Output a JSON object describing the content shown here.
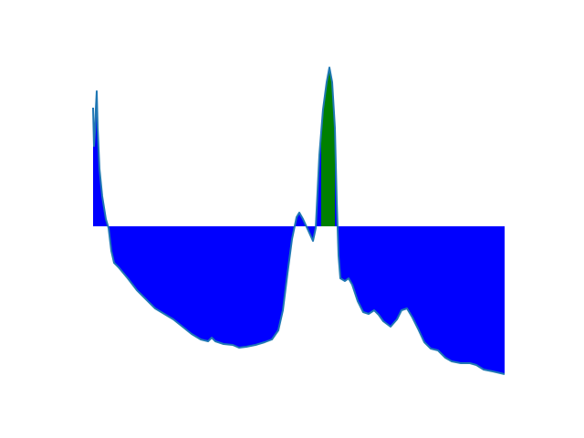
{
  "chart_data": {
    "type": "area",
    "x": [
      0,
      1,
      2,
      3,
      4,
      5,
      7,
      10,
      14,
      17,
      20,
      23,
      28,
      38,
      48,
      58,
      68,
      78,
      88,
      98,
      108,
      118,
      126,
      130,
      134,
      143,
      153,
      160,
      168,
      178,
      188,
      196,
      203,
      208,
      213,
      218,
      223,
      226,
      230,
      236,
      241,
      244,
      248,
      252,
      256,
      259,
      262,
      265,
      267,
      269,
      271,
      276,
      280,
      284,
      290,
      296,
      302,
      308,
      313,
      318,
      326,
      333,
      338,
      344,
      350,
      356,
      363,
      370,
      378,
      386,
      393,
      403,
      413,
      420,
      428,
      438,
      451
    ],
    "values": [
      130,
      88,
      103,
      128,
      148,
      108,
      63,
      33,
      8,
      -2,
      -27,
      -40,
      -45,
      -57,
      -70,
      -80,
      -90,
      -96,
      -102,
      -110,
      -118,
      -124,
      -126,
      -122,
      -126,
      -129,
      -130,
      -133,
      -132,
      -130,
      -127,
      -124,
      -114,
      -92,
      -52,
      -14,
      10,
      15,
      8,
      -5,
      -16,
      -2,
      78,
      128,
      158,
      174,
      158,
      108,
      28,
      -32,
      -57,
      -60,
      -57,
      -64,
      -82,
      -94,
      -96,
      -92,
      -97,
      -104,
      -110,
      -102,
      -92,
      -90,
      -100,
      -112,
      -127,
      -134,
      -136,
      -144,
      -148,
      -150,
      -150,
      -152,
      -157,
      -159,
      -162
    ],
    "color": "#1f77b4",
    "fill_color": "blue",
    "baseline": 0,
    "highlight_x": [
      250,
      265
    ],
    "highlight_color": "green",
    "xlim": [
      -22,
      474
    ],
    "ylim": [
      -179,
      190
    ]
  }
}
